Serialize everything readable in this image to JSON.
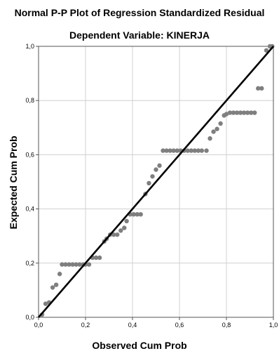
{
  "chart_data": {
    "type": "scatter",
    "title": "Normal P-P Plot of Regression Standardized Residual",
    "subtitle": "Dependent Variable: KINERJA",
    "xlabel": "Observed Cum Prob",
    "ylabel": "Expected Cum Prob",
    "xlim": [
      0,
      1
    ],
    "ylim": [
      0,
      1
    ],
    "grid": true,
    "x_ticks": [
      "0,0",
      "0,2",
      "0,4",
      "0,6",
      "0,8",
      "1,0"
    ],
    "y_ticks": [
      "0,0",
      "0,2",
      "0,4",
      "0,6",
      "0,8",
      "1,0"
    ],
    "reference_line": {
      "from": [
        0,
        0
      ],
      "to": [
        1,
        1
      ],
      "color": "#000000"
    },
    "point_color": "#7f7f7f",
    "points": [
      [
        0.015,
        0.01
      ],
      [
        0.03,
        0.05
      ],
      [
        0.045,
        0.055
      ],
      [
        0.06,
        0.11
      ],
      [
        0.075,
        0.12
      ],
      [
        0.09,
        0.16
      ],
      [
        0.1,
        0.195
      ],
      [
        0.115,
        0.195
      ],
      [
        0.13,
        0.195
      ],
      [
        0.145,
        0.195
      ],
      [
        0.16,
        0.195
      ],
      [
        0.175,
        0.195
      ],
      [
        0.19,
        0.195
      ],
      [
        0.2,
        0.195
      ],
      [
        0.215,
        0.195
      ],
      [
        0.23,
        0.22
      ],
      [
        0.245,
        0.22
      ],
      [
        0.26,
        0.22
      ],
      [
        0.28,
        0.28
      ],
      [
        0.29,
        0.29
      ],
      [
        0.305,
        0.305
      ],
      [
        0.32,
        0.305
      ],
      [
        0.335,
        0.305
      ],
      [
        0.35,
        0.32
      ],
      [
        0.365,
        0.33
      ],
      [
        0.375,
        0.355
      ],
      [
        0.39,
        0.38
      ],
      [
        0.405,
        0.38
      ],
      [
        0.42,
        0.38
      ],
      [
        0.435,
        0.38
      ],
      [
        0.455,
        0.455
      ],
      [
        0.47,
        0.495
      ],
      [
        0.485,
        0.52
      ],
      [
        0.5,
        0.545
      ],
      [
        0.515,
        0.56
      ],
      [
        0.53,
        0.615
      ],
      [
        0.545,
        0.615
      ],
      [
        0.56,
        0.615
      ],
      [
        0.575,
        0.615
      ],
      [
        0.59,
        0.615
      ],
      [
        0.605,
        0.615
      ],
      [
        0.62,
        0.615
      ],
      [
        0.635,
        0.615
      ],
      [
        0.65,
        0.615
      ],
      [
        0.665,
        0.615
      ],
      [
        0.68,
        0.615
      ],
      [
        0.695,
        0.615
      ],
      [
        0.715,
        0.615
      ],
      [
        0.73,
        0.66
      ],
      [
        0.745,
        0.685
      ],
      [
        0.76,
        0.695
      ],
      [
        0.775,
        0.715
      ],
      [
        0.79,
        0.745
      ],
      [
        0.8,
        0.75
      ],
      [
        0.815,
        0.755
      ],
      [
        0.83,
        0.755
      ],
      [
        0.845,
        0.755
      ],
      [
        0.86,
        0.755
      ],
      [
        0.875,
        0.755
      ],
      [
        0.89,
        0.755
      ],
      [
        0.905,
        0.755
      ],
      [
        0.92,
        0.755
      ],
      [
        0.935,
        0.845
      ],
      [
        0.95,
        0.845
      ],
      [
        0.97,
        0.985
      ],
      [
        0.985,
        1.0
      ],
      [
        0.995,
        1.0
      ]
    ]
  }
}
